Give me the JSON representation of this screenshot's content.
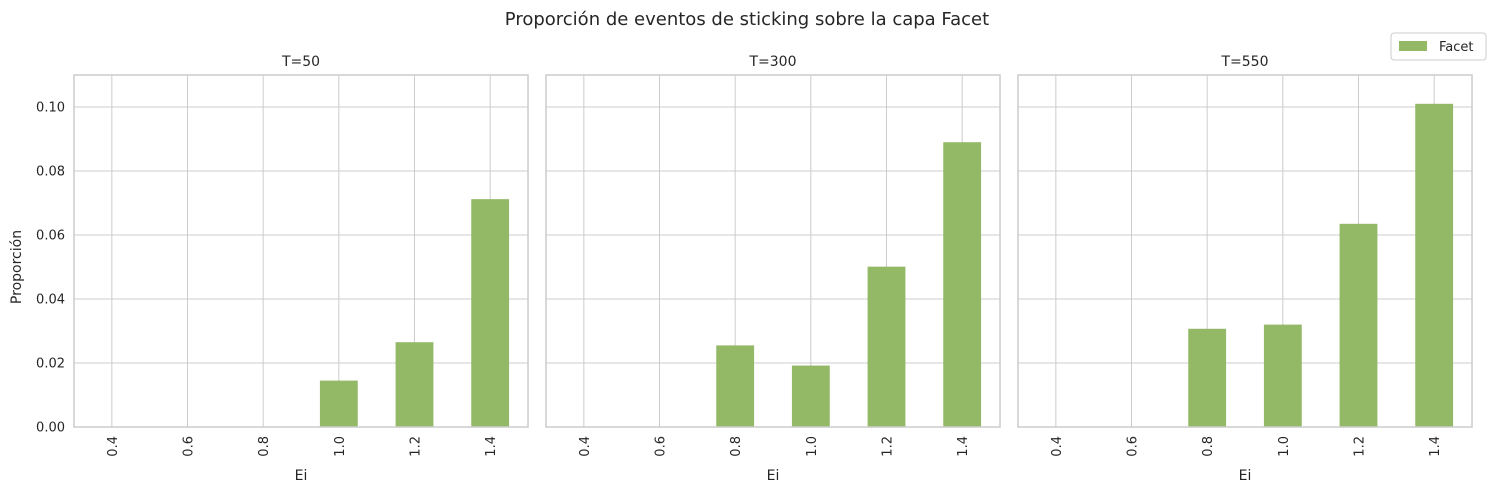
{
  "chart_data": {
    "type": "bar",
    "title": "Proporción de eventos de sticking sobre la capa Facet",
    "ylabel": "Proporción",
    "xlabel": "Ei",
    "ylim": [
      0,
      0.11
    ],
    "yticks": [
      "0.00",
      "0.02",
      "0.04",
      "0.06",
      "0.08",
      "0.10"
    ],
    "ytick_values": [
      0,
      0.02,
      0.04,
      0.06,
      0.08,
      0.1
    ],
    "categories": [
      "0.4",
      "0.6",
      "0.8",
      "1.0",
      "1.2",
      "1.4"
    ],
    "grid": true,
    "legend": {
      "position": "top-right",
      "entries": [
        "Facet"
      ]
    },
    "color": "#93b866",
    "panels": [
      {
        "title": "T=50",
        "series": [
          {
            "name": "Facet",
            "values": [
              0,
              0,
              0,
              0.0145,
              0.0265,
              0.0712
            ]
          }
        ]
      },
      {
        "title": "T=300",
        "series": [
          {
            "name": "Facet",
            "values": [
              0,
              0,
              0.0255,
              0.0192,
              0.0501,
              0.089
            ]
          }
        ]
      },
      {
        "title": "T=550",
        "series": [
          {
            "name": "Facet",
            "values": [
              0,
              0,
              0.0307,
              0.032,
              0.0635,
              0.101
            ]
          }
        ]
      }
    ]
  }
}
